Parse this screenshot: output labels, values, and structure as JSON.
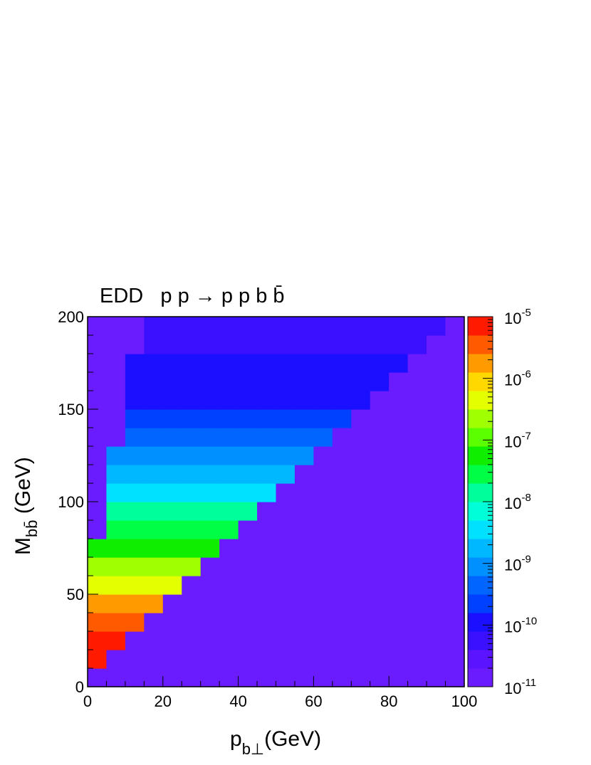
{
  "chart_data": {
    "type": "heatmap",
    "title": "EDD   p p → p p b b̄",
    "xlabel": {
      "text": "p",
      "subscript": "b⊥",
      "suffix": "(GeV)"
    },
    "ylabel": {
      "text": "M",
      "subscript": "bb̄",
      "suffix": " (GeV)"
    },
    "xlim": [
      0,
      100
    ],
    "xticks": [
      0,
      20,
      40,
      60,
      80,
      100
    ],
    "ylim": [
      0,
      200
    ],
    "yticks": [
      0,
      50,
      100,
      150,
      200
    ],
    "zlim": [
      1e-11,
      1e-05
    ],
    "zlog": true,
    "zticks": [
      {
        "value": 1e-05,
        "label": "10",
        "exponent": "-5"
      },
      {
        "value": 1e-06,
        "label": "10",
        "exponent": "-6"
      },
      {
        "value": 1e-07,
        "label": "10",
        "exponent": "-7"
      },
      {
        "value": 1e-08,
        "label": "10",
        "exponent": "-8"
      },
      {
        "value": 1e-09,
        "label": "10",
        "exponent": "-9"
      },
      {
        "value": 1e-10,
        "label": "10",
        "exponent": "-10"
      },
      {
        "value": 1e-11,
        "label": "10",
        "exponent": "-11"
      }
    ],
    "palette": [
      "#6b1cff",
      "#5a14ff",
      "#3a10ff",
      "#1a10ff",
      "#0040ff",
      "#0066ff",
      "#0090ff",
      "#00b8ff",
      "#00e0ff",
      "#00ffd8",
      "#00ff9a",
      "#00ff44",
      "#10ee00",
      "#5cff00",
      "#a0ff00",
      "#e4ff00",
      "#ffd800",
      "#ff9a00",
      "#ff5a00",
      "#ff1a00"
    ],
    "xbins": [
      0,
      5,
      10,
      15,
      20,
      25,
      30,
      35,
      40,
      45,
      50,
      55,
      60,
      65,
      70,
      75,
      80,
      85,
      90,
      95,
      100
    ],
    "ybins": [
      0,
      10,
      20,
      30,
      40,
      50,
      60,
      70,
      80,
      90,
      100,
      110,
      120,
      130,
      140,
      150,
      160,
      170,
      180,
      190,
      200
    ],
    "z": [
      [
        1e-11,
        1e-11,
        1e-11,
        1e-11,
        1e-11,
        1e-11,
        1e-11,
        1e-11,
        1e-11,
        1e-11,
        1e-11,
        1e-11,
        1e-11,
        1e-11,
        1e-11,
        1e-11,
        1e-11,
        1e-11,
        1e-11,
        1e-11
      ],
      [
        6e-06,
        1e-11,
        1e-11,
        1e-11,
        1e-11,
        1e-11,
        1e-11,
        1e-11,
        1e-11,
        1e-11,
        1e-11,
        1e-11,
        1e-11,
        1e-11,
        1e-11,
        1e-11,
        1e-11,
        1e-11,
        1e-11,
        1e-11
      ],
      [
        6e-06,
        6e-06,
        1e-11,
        1e-11,
        1e-11,
        1e-11,
        1e-11,
        1e-11,
        1e-11,
        1e-11,
        1e-11,
        1e-11,
        1e-11,
        1e-11,
        1e-11,
        1e-11,
        1e-11,
        1e-11,
        1e-11,
        1e-11
      ],
      [
        5e-06,
        5e-06,
        5e-06,
        1e-11,
        1e-11,
        1e-11,
        1e-11,
        1e-11,
        1e-11,
        1e-11,
        1e-11,
        1e-11,
        1e-11,
        1e-11,
        1e-11,
        1e-11,
        1e-11,
        1e-11,
        1e-11,
        1e-11
      ],
      [
        2e-06,
        2e-06,
        2e-06,
        2e-06,
        1e-11,
        1e-11,
        1e-11,
        1e-11,
        1e-11,
        1e-11,
        1e-11,
        1e-11,
        1e-11,
        1e-11,
        1e-11,
        1e-11,
        1e-11,
        1e-11,
        1e-11,
        1e-11
      ],
      [
        6e-07,
        6e-07,
        6e-07,
        6e-07,
        6e-07,
        1e-11,
        1e-11,
        1e-11,
        1e-11,
        1e-11,
        1e-11,
        1e-11,
        1e-11,
        1e-11,
        1e-11,
        1e-11,
        1e-11,
        1e-11,
        1e-11,
        1e-11
      ],
      [
        2e-07,
        2e-07,
        2e-07,
        2e-07,
        2e-07,
        2e-07,
        1e-11,
        1e-11,
        1e-11,
        1e-11,
        1e-11,
        1e-11,
        1e-11,
        1e-11,
        1e-11,
        1e-11,
        1e-11,
        1e-11,
        1e-11,
        1e-11
      ],
      [
        6e-08,
        6e-08,
        6e-08,
        6e-08,
        6e-08,
        6e-08,
        6e-08,
        1e-11,
        1e-11,
        1e-11,
        1e-11,
        1e-11,
        1e-11,
        1e-11,
        1e-11,
        1e-11,
        1e-11,
        1e-11,
        1e-11,
        1e-11
      ],
      [
        1e-11,
        2e-08,
        2e-08,
        2e-08,
        2e-08,
        2e-08,
        2e-08,
        2e-08,
        1e-11,
        1e-11,
        1e-11,
        1e-11,
        1e-11,
        1e-11,
        1e-11,
        1e-11,
        1e-11,
        1e-11,
        1e-11,
        1e-11
      ],
      [
        1e-11,
        1e-08,
        1e-08,
        1e-08,
        1e-08,
        1e-08,
        1e-08,
        1e-08,
        1e-08,
        1e-11,
        1e-11,
        1e-11,
        1e-11,
        1e-11,
        1e-11,
        1e-11,
        1e-11,
        1e-11,
        1e-11,
        1e-11
      ],
      [
        1e-11,
        5e-09,
        5e-09,
        5e-09,
        5e-09,
        5e-09,
        5e-09,
        5e-09,
        5e-09,
        5e-09,
        1e-11,
        1e-11,
        1e-11,
        1e-11,
        1e-11,
        1e-11,
        1e-11,
        1e-11,
        1e-11,
        1e-11
      ],
      [
        1e-11,
        2e-09,
        2e-09,
        2e-09,
        2e-09,
        2e-09,
        2e-09,
        2e-09,
        2e-09,
        2e-09,
        2e-09,
        1e-11,
        1e-11,
        1e-11,
        1e-11,
        1e-11,
        1e-11,
        1e-11,
        1e-11,
        1e-11
      ],
      [
        1e-11,
        1e-09,
        1e-09,
        1e-09,
        1e-09,
        1e-09,
        1e-09,
        1e-09,
        1e-09,
        1e-09,
        1e-09,
        1e-09,
        1e-11,
        1e-11,
        1e-11,
        1e-11,
        1e-11,
        1e-11,
        1e-11,
        1e-11
      ],
      [
        1e-11,
        1e-11,
        5e-10,
        5e-10,
        5e-10,
        5e-10,
        5e-10,
        5e-10,
        5e-10,
        5e-10,
        5e-10,
        5e-10,
        5e-10,
        1e-11,
        1e-11,
        1e-11,
        1e-11,
        1e-11,
        1e-11,
        1e-11
      ],
      [
        1e-11,
        1e-11,
        2e-10,
        2e-10,
        2e-10,
        2e-10,
        2e-10,
        2e-10,
        2e-10,
        2e-10,
        2e-10,
        2e-10,
        2e-10,
        2e-10,
        1e-11,
        1e-11,
        1e-11,
        1e-11,
        1e-11,
        1e-11
      ],
      [
        1e-11,
        1e-11,
        1.5e-10,
        1.5e-10,
        1.5e-10,
        1.5e-10,
        1.5e-10,
        1.5e-10,
        1.5e-10,
        1.5e-10,
        1.5e-10,
        1.5e-10,
        1.5e-10,
        1.5e-10,
        1.5e-10,
        1e-11,
        1e-11,
        1e-11,
        1e-11,
        1e-11
      ],
      [
        1e-11,
        1e-11,
        1e-10,
        1e-10,
        1e-10,
        1e-10,
        1e-10,
        1e-10,
        1e-10,
        1e-10,
        1e-10,
        1e-10,
        1e-10,
        1e-10,
        1e-10,
        1e-10,
        1e-11,
        1e-11,
        1e-11,
        1e-11
      ],
      [
        1e-11,
        1e-11,
        8e-11,
        8e-11,
        8e-11,
        8e-11,
        8e-11,
        8e-11,
        8e-11,
        8e-11,
        8e-11,
        8e-11,
        8e-11,
        8e-11,
        8e-11,
        8e-11,
        8e-11,
        1e-11,
        1e-11,
        1e-11
      ],
      [
        1e-11,
        1e-11,
        1e-11,
        7e-11,
        7e-11,
        7e-11,
        7e-11,
        7e-11,
        7e-11,
        7e-11,
        7e-11,
        7e-11,
        7e-11,
        7e-11,
        7e-11,
        7e-11,
        7e-11,
        7e-11,
        1e-11,
        1e-11
      ],
      [
        1e-11,
        1e-11,
        1e-11,
        6e-11,
        6e-11,
        6e-11,
        6e-11,
        6e-11,
        6e-11,
        6e-11,
        6e-11,
        6e-11,
        6e-11,
        6e-11,
        6e-11,
        6e-11,
        6e-11,
        6e-11,
        6e-11,
        1e-11
      ]
    ]
  }
}
